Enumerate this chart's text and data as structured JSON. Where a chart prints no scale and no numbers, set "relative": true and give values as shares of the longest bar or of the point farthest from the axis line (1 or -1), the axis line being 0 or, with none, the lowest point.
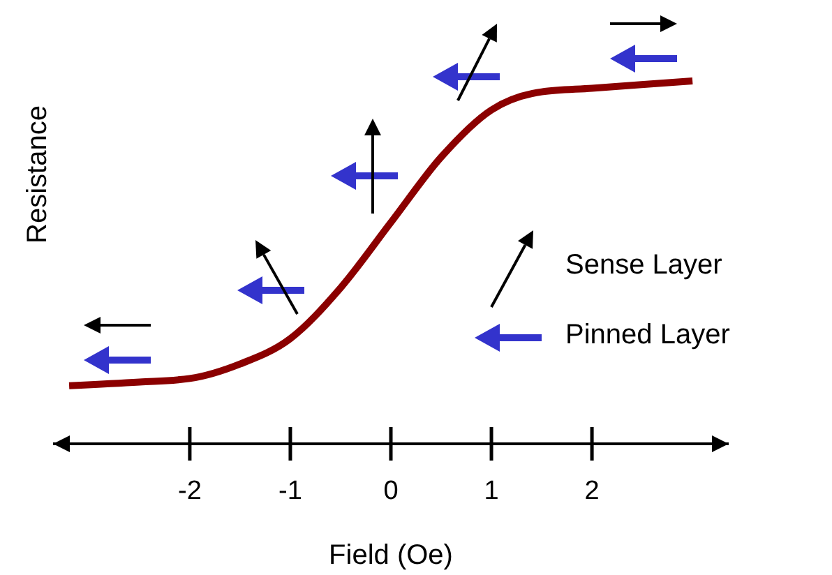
{
  "chart_data": {
    "type": "line",
    "relative": true,
    "xlabel": "Field (Oe)",
    "ylabel": "Resistance",
    "xlim": [
      -3.36,
      3.36
    ],
    "xticks": [
      -2,
      -1,
      0,
      1,
      2
    ],
    "x": [
      -3.2,
      -2.5,
      -2,
      -1.5,
      -1,
      -0.5,
      0,
      0.5,
      1,
      1.5,
      2,
      3
    ],
    "series": [
      {
        "color": "#8b0000",
        "values": [
          0.16,
          0.17,
          0.18,
          0.22,
          0.29,
          0.43,
          0.61,
          0.79,
          0.92,
          0.97,
          0.98,
          1
        ]
      }
    ],
    "annotations": [
      "Sense Layer",
      "Pinned Layer"
    ],
    "marker": "none",
    "line_style": "solid"
  }
}
